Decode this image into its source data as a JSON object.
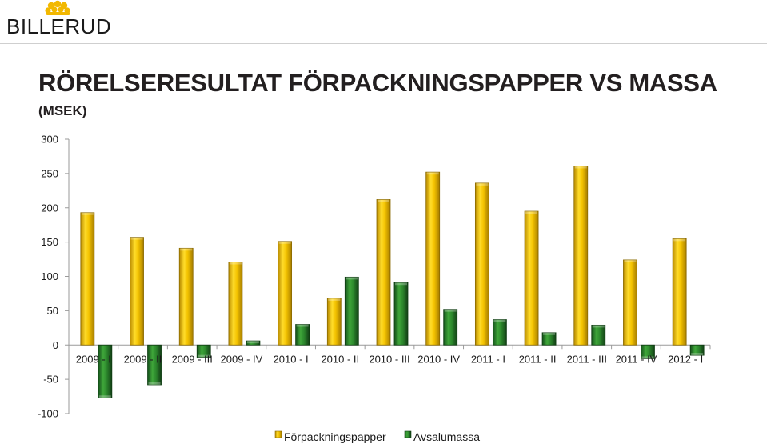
{
  "brand": {
    "name": "BILLERUD"
  },
  "colors": {
    "series1": "#f2c100",
    "series2": "#2e8b2e",
    "axis": "#9a9a9a"
  },
  "chart_data": {
    "type": "bar",
    "title": "RÖRELSERESULTAT FÖRPACKNINGSPAPPER VS MASSA",
    "subtitle": "(MSEK)",
    "categories": [
      "2009 - I",
      "2009 - II",
      "2009 - III",
      "2009 - IV",
      "2010 - I",
      "2010 - II",
      "2010 - III",
      "2010 - IV",
      "2011 - I",
      "2011 - II",
      "2011 - III",
      "2011 - IV",
      "2012 - I"
    ],
    "series": [
      {
        "name": "Förpackningspapper",
        "values": [
          193,
          157,
          141,
          121,
          151,
          68,
          212,
          252,
          236,
          195,
          261,
          124,
          155
        ]
      },
      {
        "name": "Avsalumassa",
        "values": [
          -77,
          -58,
          -18,
          6,
          30,
          99,
          91,
          52,
          37,
          18,
          29,
          -20,
          -15
        ]
      }
    ],
    "ylim": [
      -100,
      300
    ],
    "yticks": [
      300,
      250,
      200,
      150,
      100,
      50,
      0,
      -50,
      -100
    ],
    "legend": "bottom",
    "grid": false
  }
}
